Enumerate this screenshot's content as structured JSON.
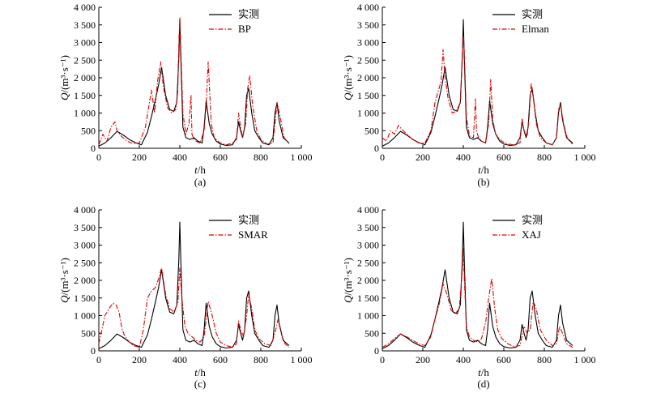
{
  "colors": {
    "observed": "#000000",
    "simulated": "#e00000"
  },
  "chart_data": [
    {
      "type": "line",
      "caption": "(a)",
      "xlabel": "t/h",
      "ylabel": "Q/(m³·s⁻¹)",
      "xlim": [
        0,
        1000
      ],
      "ylim": [
        0,
        4000
      ],
      "x_ticks": [
        0,
        200,
        400,
        600,
        800,
        1000
      ],
      "x_tick_labels": [
        "0",
        "200",
        "400",
        "600",
        "800",
        "1 000"
      ],
      "y_ticks": [
        0,
        500,
        1000,
        1500,
        2000,
        2500,
        3000,
        3500,
        4000
      ],
      "y_tick_labels": [
        "0",
        "500",
        "1 000",
        "1 500",
        "2 000",
        "2 500",
        "3 000",
        "3 500",
        "4 000"
      ],
      "legend_position": "top-right",
      "series": [
        {
          "name": "实测",
          "style": "solid",
          "color": "#000000",
          "x": [
            0,
            30,
            60,
            90,
            120,
            150,
            180,
            210,
            240,
            260,
            280,
            295,
            310,
            330,
            350,
            370,
            385,
            395,
            400,
            405,
            415,
            430,
            450,
            470,
            490,
            510,
            520,
            530,
            545,
            560,
            580,
            600,
            630,
            660,
            680,
            690,
            700,
            710,
            720,
            730,
            740,
            755,
            770,
            790,
            810,
            840,
            860,
            870,
            880,
            890,
            910,
            940
          ],
          "y": [
            60,
            150,
            300,
            480,
            380,
            250,
            160,
            100,
            450,
            900,
            1400,
            1800,
            2300,
            1500,
            1100,
            1050,
            1300,
            2600,
            3650,
            2500,
            600,
            300,
            250,
            300,
            200,
            150,
            600,
            1350,
            700,
            400,
            200,
            120,
            80,
            100,
            300,
            750,
            500,
            300,
            600,
            1500,
            1700,
            1000,
            500,
            300,
            150,
            100,
            300,
            1000,
            1300,
            800,
            300,
            150
          ]
        },
        {
          "name": "BP",
          "style": "dashdot",
          "color": "#e00000",
          "x": [
            0,
            20,
            40,
            60,
            80,
            90,
            110,
            140,
            170,
            200,
            230,
            250,
            260,
            275,
            290,
            305,
            320,
            340,
            360,
            380,
            390,
            395,
            400,
            405,
            415,
            430,
            445,
            455,
            460,
            470,
            480,
            500,
            520,
            530,
            540,
            555,
            570,
            600,
            630,
            660,
            680,
            690,
            700,
            710,
            725,
            735,
            745,
            760,
            780,
            800,
            830,
            860,
            870,
            880,
            895,
            915,
            940
          ],
          "y": [
            100,
            400,
            200,
            600,
            750,
            500,
            350,
            200,
            130,
            150,
            600,
            1300,
            1650,
            1000,
            1900,
            2450,
            1700,
            1150,
            1000,
            1100,
            1600,
            3000,
            3700,
            2800,
            1000,
            400,
            700,
            1500,
            400,
            250,
            200,
            150,
            500,
            1200,
            2450,
            700,
            300,
            150,
            100,
            150,
            250,
            1000,
            600,
            300,
            700,
            1700,
            2050,
            1200,
            500,
            250,
            120,
            150,
            700,
            1300,
            900,
            300,
            120
          ]
        }
      ]
    },
    {
      "type": "line",
      "caption": "(b)",
      "xlabel": "t/h",
      "ylabel": "Q/(m³·s⁻¹)",
      "xlim": [
        0,
        1000
      ],
      "ylim": [
        0,
        4000
      ],
      "x_ticks": [
        0,
        200,
        400,
        600,
        800,
        1000
      ],
      "x_tick_labels": [
        "0",
        "200",
        "400",
        "600",
        "800",
        "1 000"
      ],
      "y_ticks": [
        0,
        500,
        1000,
        1500,
        2000,
        2500,
        3000,
        3500,
        4000
      ],
      "y_tick_labels": [
        "0",
        "500",
        "1 000",
        "1 500",
        "2 000",
        "2 500",
        "3 000",
        "3 500",
        "4 000"
      ],
      "legend_position": "top-right",
      "series": [
        {
          "name": "实测",
          "style": "solid",
          "color": "#000000",
          "x": [
            0,
            30,
            60,
            90,
            120,
            150,
            180,
            210,
            240,
            260,
            280,
            295,
            310,
            330,
            350,
            370,
            385,
            395,
            400,
            405,
            415,
            430,
            450,
            470,
            490,
            510,
            520,
            530,
            545,
            560,
            580,
            600,
            630,
            660,
            680,
            690,
            700,
            710,
            720,
            730,
            740,
            755,
            770,
            790,
            810,
            840,
            860,
            870,
            880,
            890,
            910,
            940
          ],
          "y": [
            60,
            150,
            300,
            480,
            380,
            250,
            160,
            100,
            450,
            900,
            1400,
            1800,
            2300,
            1500,
            1100,
            1050,
            1300,
            2600,
            3650,
            2500,
            600,
            300,
            250,
            300,
            200,
            150,
            600,
            1350,
            700,
            400,
            200,
            120,
            80,
            100,
            300,
            750,
            500,
            300,
            600,
            1500,
            1700,
            1000,
            500,
            300,
            150,
            100,
            300,
            1000,
            1300,
            800,
            300,
            150
          ]
        },
        {
          "name": "Elman",
          "style": "dashdot",
          "color": "#e00000",
          "x": [
            0,
            20,
            40,
            60,
            80,
            95,
            120,
            150,
            180,
            210,
            240,
            260,
            275,
            290,
            300,
            310,
            325,
            345,
            365,
            385,
            395,
            400,
            405,
            415,
            430,
            450,
            460,
            465,
            475,
            490,
            510,
            525,
            535,
            545,
            560,
            590,
            620,
            650,
            680,
            690,
            700,
            715,
            725,
            735,
            745,
            760,
            780,
            810,
            840,
            860,
            870,
            880,
            895,
            915,
            940
          ],
          "y": [
            300,
            200,
            500,
            400,
            650,
            550,
            400,
            250,
            150,
            150,
            500,
            1300,
            1600,
            1900,
            2800,
            2000,
            1400,
            1000,
            1050,
            1300,
            2700,
            3200,
            2700,
            900,
            350,
            300,
            1400,
            500,
            300,
            200,
            150,
            700,
            1950,
            800,
            400,
            200,
            120,
            100,
            150,
            850,
            500,
            350,
            900,
            1850,
            1500,
            700,
            300,
            150,
            100,
            300,
            1100,
            1250,
            700,
            250,
            120
          ]
        }
      ]
    },
    {
      "type": "line",
      "caption": "(c)",
      "xlabel": "t/h",
      "ylabel": "Q/(m³·s⁻¹)",
      "xlim": [
        0,
        1000
      ],
      "ylim": [
        0,
        4000
      ],
      "x_ticks": [
        0,
        200,
        400,
        600,
        800,
        1000
      ],
      "x_tick_labels": [
        "0",
        "200",
        "400",
        "600",
        "800",
        "1 000"
      ],
      "y_ticks": [
        0,
        500,
        1000,
        1500,
        2000,
        2500,
        3000,
        3500,
        4000
      ],
      "y_tick_labels": [
        "0",
        "500",
        "1 000",
        "1 500",
        "2 000",
        "2 500",
        "3 000",
        "3 500",
        "4 000"
      ],
      "legend_position": "top-right",
      "series": [
        {
          "name": "实测",
          "style": "solid",
          "color": "#000000",
          "x": [
            0,
            30,
            60,
            90,
            120,
            150,
            180,
            210,
            240,
            260,
            280,
            295,
            310,
            330,
            350,
            370,
            385,
            395,
            400,
            405,
            415,
            430,
            450,
            470,
            490,
            510,
            520,
            530,
            545,
            560,
            580,
            600,
            630,
            660,
            680,
            690,
            700,
            710,
            720,
            730,
            740,
            755,
            770,
            790,
            810,
            840,
            860,
            870,
            880,
            890,
            910,
            940
          ],
          "y": [
            60,
            150,
            300,
            480,
            380,
            250,
            160,
            100,
            450,
            900,
            1400,
            1800,
            2300,
            1500,
            1100,
            1050,
            1300,
            2600,
            3650,
            2500,
            600,
            300,
            250,
            300,
            200,
            150,
            600,
            1350,
            700,
            400,
            200,
            120,
            80,
            100,
            300,
            750,
            500,
            300,
            600,
            1500,
            1700,
            1000,
            500,
            300,
            150,
            100,
            300,
            1000,
            1300,
            800,
            300,
            150
          ]
        },
        {
          "name": "SMAR",
          "style": "dashdot",
          "color": "#e00000",
          "x": [
            0,
            15,
            30,
            50,
            70,
            85,
            100,
            115,
            130,
            150,
            170,
            200,
            220,
            240,
            260,
            280,
            295,
            310,
            330,
            350,
            370,
            390,
            400,
            410,
            425,
            440,
            460,
            480,
            500,
            520,
            540,
            560,
            580,
            600,
            630,
            660,
            680,
            690,
            700,
            715,
            730,
            740,
            755,
            770,
            790,
            820,
            850,
            870,
            885,
            900,
            920,
            940
          ],
          "y": [
            200,
            600,
            1000,
            1200,
            1350,
            1300,
            1100,
            600,
            400,
            250,
            150,
            100,
            600,
            1500,
            1700,
            1800,
            2050,
            2350,
            1600,
            1200,
            1100,
            1350,
            2350,
            1500,
            700,
            500,
            400,
            300,
            250,
            400,
            1400,
            1000,
            500,
            250,
            150,
            100,
            200,
            850,
            600,
            400,
            1000,
            1600,
            1200,
            600,
            350,
            200,
            150,
            500,
            900,
            500,
            200,
            100
          ]
        }
      ]
    },
    {
      "type": "line",
      "caption": "(d)",
      "xlabel": "t/h",
      "ylabel": "Q/(m³·s⁻¹)",
      "xlim": [
        0,
        1000
      ],
      "ylim": [
        0,
        4000
      ],
      "x_ticks": [
        0,
        200,
        400,
        600,
        800,
        1000
      ],
      "x_tick_labels": [
        "0",
        "200",
        "400",
        "600",
        "800",
        "1 000"
      ],
      "y_ticks": [
        0,
        500,
        1000,
        1500,
        2000,
        2500,
        3000,
        3500,
        4000
      ],
      "y_tick_labels": [
        "0",
        "500",
        "1 000",
        "1 500",
        "2 000",
        "2 500",
        "3 000",
        "3 500",
        "4 000"
      ],
      "legend_position": "top-right",
      "series": [
        {
          "name": "实测",
          "style": "solid",
          "color": "#000000",
          "x": [
            0,
            30,
            60,
            90,
            120,
            150,
            180,
            210,
            240,
            260,
            280,
            295,
            310,
            330,
            350,
            370,
            385,
            395,
            400,
            405,
            415,
            430,
            450,
            470,
            490,
            510,
            520,
            530,
            545,
            560,
            580,
            600,
            630,
            660,
            680,
            690,
            700,
            710,
            720,
            730,
            740,
            755,
            770,
            790,
            810,
            840,
            860,
            870,
            880,
            890,
            910,
            940
          ],
          "y": [
            60,
            150,
            300,
            480,
            380,
            250,
            160,
            100,
            450,
            900,
            1400,
            1800,
            2300,
            1500,
            1100,
            1050,
            1300,
            2600,
            3650,
            2500,
            600,
            300,
            250,
            300,
            200,
            150,
            600,
            1350,
            700,
            400,
            200,
            120,
            80,
            100,
            300,
            750,
            500,
            300,
            600,
            1500,
            1700,
            1000,
            500,
            300,
            150,
            100,
            300,
            1000,
            1300,
            800,
            300,
            150
          ]
        },
        {
          "name": "XAJ",
          "style": "dashdot",
          "color": "#e00000",
          "x": [
            0,
            30,
            60,
            90,
            120,
            150,
            180,
            210,
            240,
            260,
            280,
            300,
            320,
            340,
            360,
            380,
            395,
            400,
            405,
            415,
            430,
            450,
            470,
            490,
            510,
            525,
            540,
            555,
            570,
            590,
            620,
            650,
            680,
            700,
            715,
            730,
            745,
            760,
            780,
            810,
            840,
            860,
            875,
            890,
            910,
            940
          ],
          "y": [
            100,
            200,
            350,
            480,
            400,
            300,
            200,
            150,
            400,
            900,
            1300,
            1900,
            1600,
            1150,
            1050,
            1200,
            2300,
            2900,
            2000,
            700,
            400,
            300,
            250,
            350,
            800,
            1500,
            2050,
            1200,
            600,
            350,
            200,
            120,
            150,
            700,
            500,
            600,
            1400,
            1200,
            600,
            300,
            150,
            200,
            700,
            500,
            200,
            100
          ]
        }
      ]
    }
  ]
}
